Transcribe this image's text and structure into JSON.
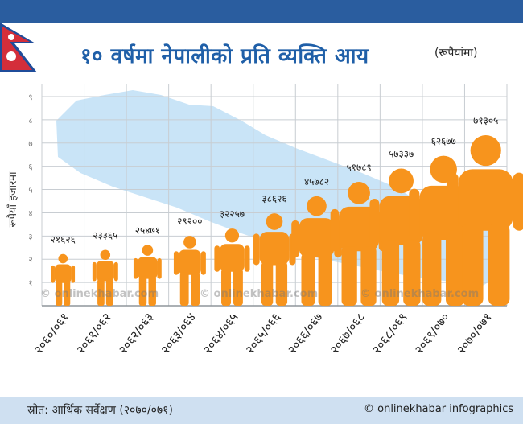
{
  "header": {
    "title": "१० वर्षमा नेपालीको प्रति व्यक्ति आय",
    "unit": "(रूपैयांमा)"
  },
  "footer": {
    "source": "स्रोत: आर्थिक सर्वेक्षण (२०७०/०७१)",
    "credit": "© onlinekhabar infographics"
  },
  "watermark": "© onlinekhabar.com",
  "colors": {
    "top_bar": "#2a5d9f",
    "title": "#1f5fa8",
    "figure": "#f7941d",
    "map": "#c9e4f7",
    "grid": "#c8cdd2",
    "footer": "#cfe0f1",
    "flag_red": "#d42e3a",
    "flag_blue": "#1f4c9a"
  },
  "chart_data": {
    "type": "bar",
    "mark": "person-icon",
    "ylabel": "रूपैयाँ हजारमा",
    "yticks": [
      "१",
      "२",
      "३",
      "४",
      "५",
      "६",
      "७",
      "८",
      "९"
    ],
    "ylim": [
      0,
      9
    ],
    "grid": true,
    "categories": [
      "२०६०/०६१",
      "२०६१/०६२",
      "२०६२/०६३",
      "२०६३/०६४",
      "२०६४/०६५",
      "२०६५/०६६",
      "२०६६/०६७",
      "२०६७/०६८",
      "२०६८/०६९",
      "२०६९/०७०",
      "२०७०/०७१"
    ],
    "value_labels": [
      "२१६२६",
      "२३३६५",
      "२५४७१",
      "२९२००",
      "३२२५७",
      "३८६२६",
      "४५७८२",
      "५१७८९",
      "५७३३७",
      "६२६७७",
      "७१३०५"
    ],
    "values": [
      21626,
      23365,
      25471,
      29200,
      32257,
      38626,
      45782,
      51789,
      57337,
      62677,
      71305
    ]
  }
}
